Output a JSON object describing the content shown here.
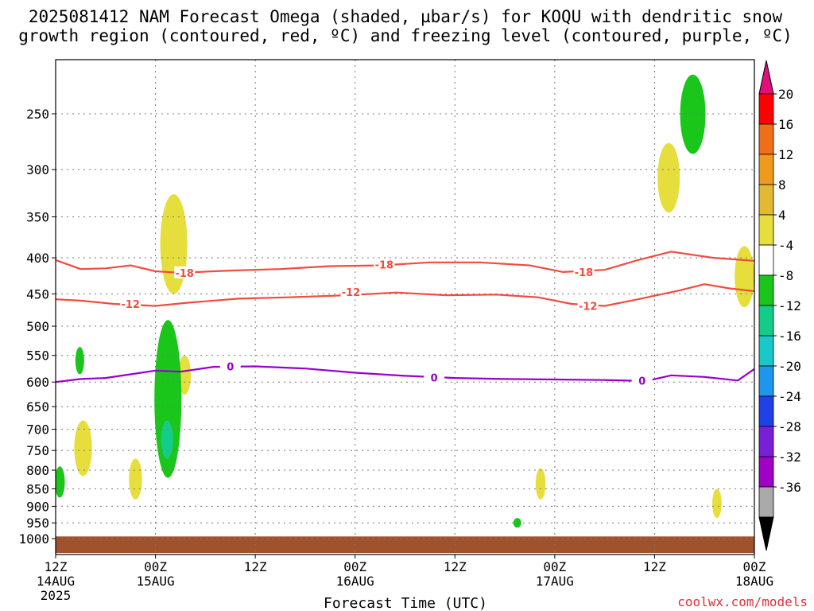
{
  "title_line1": "2025081412 NAM Forecast Omega (shaded, µbar/s) for KOQU with dendritic snow",
  "title_line2": "growth region (contoured, red, ºC) and freezing level (contoured, purple, ºC)",
  "credit": "coolwx.com/models",
  "colors": {
    "dgz": "#f24b3f",
    "freezing": "#9900cc",
    "terrain": "#a0522d",
    "grid": "#777777"
  },
  "chart_data": {
    "type": "heatmap",
    "xlabel": "Forecast Time (UTC)",
    "ylabel": "",
    "x_unit": "hours",
    "xlim": [
      0,
      84
    ],
    "y_unit": "hPa",
    "ylim": [
      1000,
      200
    ],
    "y_scale": "log-pressure",
    "y_ticks": [
      250,
      300,
      350,
      400,
      450,
      500,
      550,
      600,
      650,
      700,
      750,
      800,
      850,
      900,
      950,
      1000
    ],
    "x_ticks": [
      {
        "x": 0,
        "l1": "12Z",
        "l2": "14AUG",
        "l3": "2025"
      },
      {
        "x": 12,
        "l1": "00Z",
        "l2": "15AUG",
        "l3": ""
      },
      {
        "x": 24,
        "l1": "12Z",
        "l2": "",
        "l3": ""
      },
      {
        "x": 36,
        "l1": "00Z",
        "l2": "16AUG",
        "l3": ""
      },
      {
        "x": 48,
        "l1": "12Z",
        "l2": "",
        "l3": ""
      },
      {
        "x": 60,
        "l1": "00Z",
        "l2": "17AUG",
        "l3": ""
      },
      {
        "x": 72,
        "l1": "12Z",
        "l2": "",
        "l3": ""
      },
      {
        "x": 84,
        "l1": "00Z",
        "l2": "18AUG",
        "l3": ""
      }
    ],
    "grid": true,
    "colorbar": {
      "labels": [
        "20",
        "16",
        "12",
        "8",
        "4",
        "-4",
        "-8",
        "-12",
        "-16",
        "-20",
        "-24",
        "-28",
        "-32",
        "-36"
      ],
      "colors": [
        "#ff0000",
        "#f26d17",
        "#ef9a1c",
        "#e3b833",
        "#e6de3c",
        "#ffffff",
        "#19c619",
        "#14cc8a",
        "#1ac8c8",
        "#1e96ee",
        "#2040e8",
        "#7a1fd8",
        "#a100c6",
        "#aaaaaa"
      ],
      "top_color": "#e0107a",
      "bottom_color": "#000000"
    },
    "omega_regions": [
      {
        "color": "#e6de3c",
        "cx": 14.2,
        "p_top": 325,
        "p_bot": 450
      },
      {
        "color": "#e6de3c",
        "cx": 15.5,
        "p_top": 550,
        "p_bot": 625
      },
      {
        "color": "#e6de3c",
        "cx": 3.3,
        "p_top": 680,
        "p_bot": 815
      },
      {
        "color": "#e6de3c",
        "cx": 9.6,
        "p_top": 770,
        "p_bot": 880
      },
      {
        "color": "#e6de3c",
        "cx": 58.3,
        "p_top": 795,
        "p_bot": 880
      },
      {
        "color": "#e6de3c",
        "cx": 73.7,
        "p_top": 275,
        "p_bot": 345
      },
      {
        "color": "#e6de3c",
        "cx": 82.8,
        "p_top": 385,
        "p_bot": 470
      },
      {
        "color": "#e6de3c",
        "cx": 79.5,
        "p_top": 850,
        "p_bot": 935
      },
      {
        "color": "#19c619",
        "cx": 76.6,
        "p_top": 220,
        "p_bot": 285
      },
      {
        "color": "#19c619",
        "cx": 2.9,
        "p_top": 535,
        "p_bot": 585
      },
      {
        "color": "#19c619",
        "cx": 0.5,
        "p_top": 790,
        "p_bot": 875
      },
      {
        "color": "#19c619",
        "cx": 13.5,
        "p_top": 490,
        "p_bot": 820
      },
      {
        "color": "#14cc8a",
        "cx": 13.4,
        "p_top": 680,
        "p_bot": 770
      },
      {
        "color": "#19c619",
        "cx": 55.5,
        "p_top": 935,
        "p_bot": 965
      }
    ],
    "contours": [
      {
        "name": "-18",
        "color": "#f24b3f",
        "points": [
          [
            0,
            403
          ],
          [
            3,
            415
          ],
          [
            6,
            414
          ],
          [
            9,
            410
          ],
          [
            12,
            418
          ],
          [
            15,
            420
          ],
          [
            21,
            417
          ],
          [
            27,
            415
          ],
          [
            33,
            411
          ],
          [
            39,
            410
          ],
          [
            45,
            406
          ],
          [
            51,
            406
          ],
          [
            57,
            410
          ],
          [
            61,
            419
          ],
          [
            66,
            416
          ],
          [
            70,
            403
          ],
          [
            74,
            392
          ],
          [
            79,
            400
          ],
          [
            84,
            404
          ]
        ],
        "labels": [
          [
            15.5,
            420
          ],
          [
            39.5,
            409
          ],
          [
            63.5,
            419
          ]
        ]
      },
      {
        "name": "-12",
        "color": "#f24b3f",
        "points": [
          [
            0,
            458
          ],
          [
            3,
            460
          ],
          [
            7,
            465
          ],
          [
            12,
            468
          ],
          [
            16,
            463
          ],
          [
            22,
            457
          ],
          [
            28,
            455
          ],
          [
            35,
            452
          ],
          [
            41,
            448
          ],
          [
            47,
            452
          ],
          [
            53,
            451
          ],
          [
            58,
            455
          ],
          [
            62,
            465
          ],
          [
            66,
            468
          ],
          [
            70,
            458
          ],
          [
            75,
            445
          ],
          [
            78,
            436
          ],
          [
            81,
            442
          ],
          [
            84,
            446
          ]
        ],
        "labels": [
          [
            9,
            465
          ],
          [
            35.5,
            447
          ],
          [
            64,
            468
          ]
        ]
      },
      {
        "name": "0",
        "color": "#9900cc",
        "points": [
          [
            0,
            600
          ],
          [
            3,
            594
          ],
          [
            6,
            592
          ],
          [
            9,
            585
          ],
          [
            12,
            578
          ],
          [
            15,
            580
          ],
          [
            19,
            571
          ],
          [
            24,
            570
          ],
          [
            30,
            574
          ],
          [
            36,
            582
          ],
          [
            42,
            588
          ],
          [
            48,
            592
          ],
          [
            54,
            594
          ],
          [
            60,
            595
          ],
          [
            66,
            596
          ],
          [
            71,
            598
          ],
          [
            74,
            587
          ],
          [
            78,
            590
          ],
          [
            82,
            597
          ],
          [
            84,
            575
          ]
        ],
        "labels": [
          [
            21,
            570
          ],
          [
            45.5,
            591
          ],
          [
            70.5,
            597
          ]
        ]
      }
    ],
    "terrain_p": 1015
  }
}
